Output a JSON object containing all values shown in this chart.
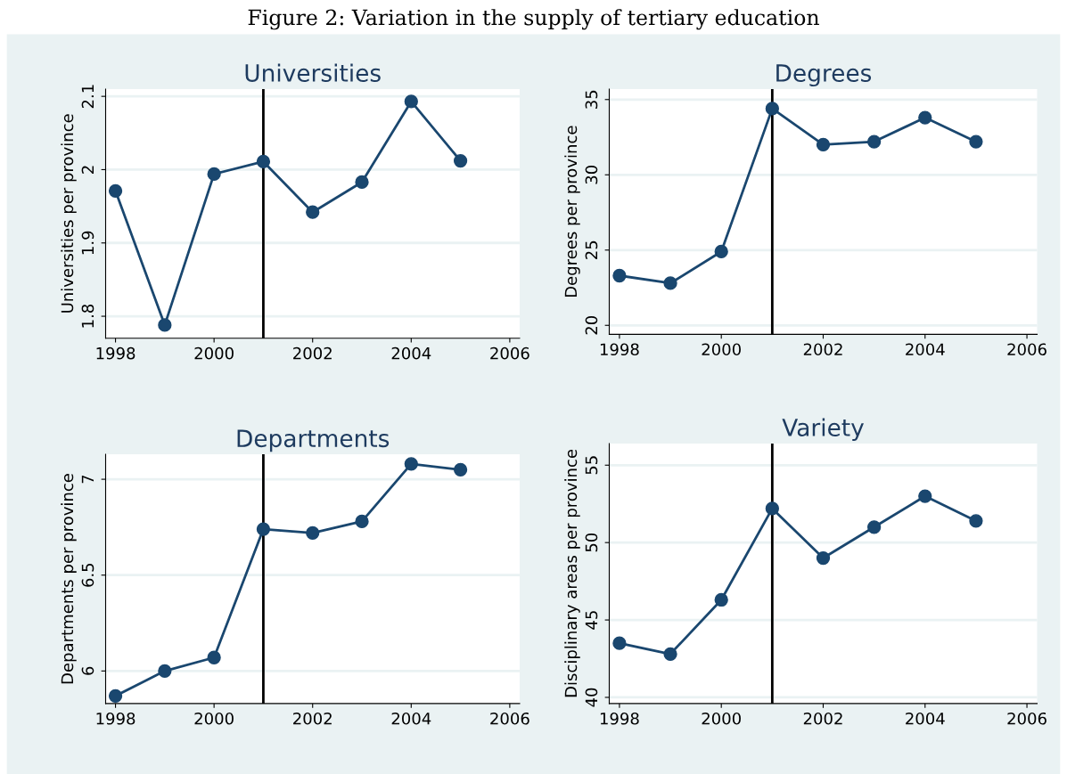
{
  "chart_data": [
    {
      "type": "line",
      "title": "Universities",
      "ylabel": "Universities per province",
      "annotations": [
        "Figure 2: Variation in the supply of tertiary education"
      ],
      "x": [
        1998,
        1999,
        2000,
        2001,
        2002,
        2003,
        2004,
        2005
      ],
      "series": [
        {
          "color": "#1a476f",
          "values": [
            1.971,
            1.788,
            1.994,
            2.011,
            1.942,
            1.983,
            2.093,
            2.012
          ]
        }
      ],
      "xlim": [
        1997.8,
        2006.2
      ],
      "xticks": [
        1998,
        2000,
        2002,
        2004,
        2006
      ],
      "ylim": [
        1.77,
        2.11
      ],
      "yticks": [
        1.8,
        1.9,
        2,
        2.1
      ],
      "grid": "y",
      "marker": "circle",
      "ref_lines": [
        {
          "axis": "x",
          "value": 2001,
          "color": "#000000"
        }
      ]
    },
    {
      "type": "line",
      "title": "Degrees",
      "ylabel": "Degrees per province",
      "x": [
        1998,
        1999,
        2000,
        2001,
        2002,
        2003,
        2004,
        2005
      ],
      "series": [
        {
          "color": "#1a476f",
          "values": [
            23.3,
            22.8,
            24.9,
            34.4,
            32.0,
            32.2,
            33.8,
            32.2
          ]
        }
      ],
      "xlim": [
        1997.8,
        2006.2
      ],
      "xticks": [
        1998,
        2000,
        2002,
        2004,
        2006
      ],
      "ylim": [
        19.4,
        35.7
      ],
      "yticks": [
        20,
        25,
        30,
        35
      ],
      "grid": "y",
      "marker": "circle",
      "ref_lines": [
        {
          "axis": "x",
          "value": 2001,
          "color": "#000000"
        }
      ]
    },
    {
      "type": "line",
      "title": "Departments",
      "ylabel": "Departments per province",
      "x": [
        1998,
        1999,
        2000,
        2001,
        2002,
        2003,
        2004,
        2005
      ],
      "series": [
        {
          "color": "#1a476f",
          "values": [
            5.87,
            6.0,
            6.07,
            6.74,
            6.72,
            6.78,
            7.08,
            7.05
          ]
        }
      ],
      "xlim": [
        1997.8,
        2006.2
      ],
      "xticks": [
        1998,
        2000,
        2002,
        2004,
        2006
      ],
      "ylim": [
        5.83,
        7.13
      ],
      "yticks": [
        6,
        6.5,
        7
      ],
      "grid": "y",
      "marker": "circle",
      "ref_lines": [
        {
          "axis": "x",
          "value": 2001,
          "color": "#000000"
        }
      ]
    },
    {
      "type": "line",
      "title": "Variety",
      "ylabel": "Disciplinary areas per province",
      "x": [
        1998,
        1999,
        2000,
        2001,
        2002,
        2003,
        2004,
        2005
      ],
      "series": [
        {
          "color": "#1a476f",
          "values": [
            43.5,
            42.8,
            46.3,
            52.2,
            49.0,
            51.0,
            53.0,
            51.4
          ]
        }
      ],
      "xlim": [
        1997.8,
        2006.2
      ],
      "xticks": [
        1998,
        2000,
        2002,
        2004,
        2006
      ],
      "ylim": [
        39.6,
        56.4
      ],
      "yticks": [
        40,
        45,
        50,
        55
      ],
      "grid": "y",
      "marker": "circle",
      "ref_lines": [
        {
          "axis": "x",
          "value": 2001,
          "color": "#000000"
        }
      ]
    }
  ]
}
